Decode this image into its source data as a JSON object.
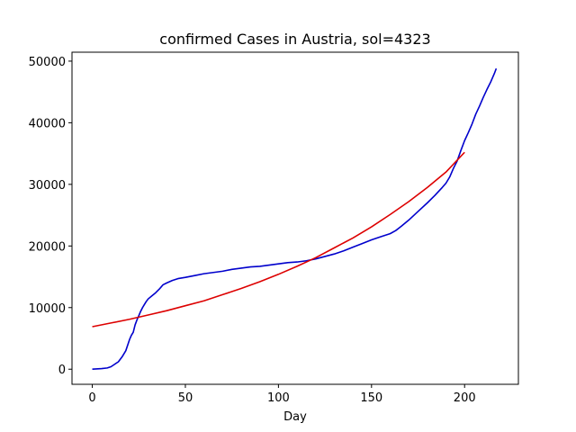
{
  "chart_data": {
    "type": "line",
    "title": "confirmed Cases in Austria, sol=4323",
    "xlabel": "Day",
    "ylabel": "",
    "xlim": [
      -10.9,
      228.9
    ],
    "ylim": [
      -2450,
      51450
    ],
    "x_ticks": [
      0,
      50,
      100,
      150,
      200
    ],
    "y_ticks": [
      0,
      10000,
      20000,
      30000,
      40000,
      50000
    ],
    "grid": false,
    "series": [
      {
        "color": "#0000cc",
        "x": [
          0,
          5,
          8,
          10,
          12,
          14,
          16,
          18,
          20,
          21,
          22,
          23,
          24,
          25,
          26,
          27,
          28,
          29,
          30,
          32,
          34,
          36,
          38,
          40,
          43,
          46,
          50,
          55,
          60,
          65,
          70,
          75,
          80,
          85,
          90,
          95,
          100,
          105,
          110,
          115,
          120,
          125,
          130,
          135,
          140,
          145,
          150,
          155,
          160,
          163,
          166,
          170,
          175,
          180,
          184,
          188,
          190,
          192,
          194,
          196,
          198,
          200,
          202,
          204,
          206,
          208,
          210,
          212,
          214,
          216,
          217
        ],
        "y": [
          0,
          100,
          200,
          400,
          800,
          1200,
          2000,
          3000,
          4800,
          5500,
          6000,
          7200,
          8000,
          8700,
          9400,
          10000,
          10500,
          11000,
          11400,
          11900,
          12400,
          13000,
          13700,
          14000,
          14400,
          14700,
          14900,
          15200,
          15500,
          15700,
          15900,
          16200,
          16400,
          16600,
          16700,
          16900,
          17100,
          17300,
          17400,
          17600,
          17900,
          18300,
          18700,
          19200,
          19800,
          20400,
          21000,
          21500,
          22000,
          22500,
          23200,
          24200,
          25600,
          27000,
          28200,
          29500,
          30200,
          31200,
          32600,
          33800,
          35500,
          37100,
          38400,
          39800,
          41400,
          42700,
          44100,
          45400,
          46600,
          48000,
          48800
        ]
      },
      {
        "color": "#dd0000",
        "x": [
          0,
          10,
          20,
          30,
          40,
          50,
          60,
          70,
          80,
          90,
          100,
          110,
          120,
          130,
          140,
          150,
          160,
          170,
          180,
          190,
          200
        ],
        "y": [
          6900,
          7500,
          8100,
          8800,
          9500,
          10300,
          11100,
          12100,
          13100,
          14200,
          15400,
          16700,
          18100,
          19700,
          21300,
          23100,
          25100,
          27200,
          29500,
          32000,
          35200
        ]
      }
    ]
  }
}
